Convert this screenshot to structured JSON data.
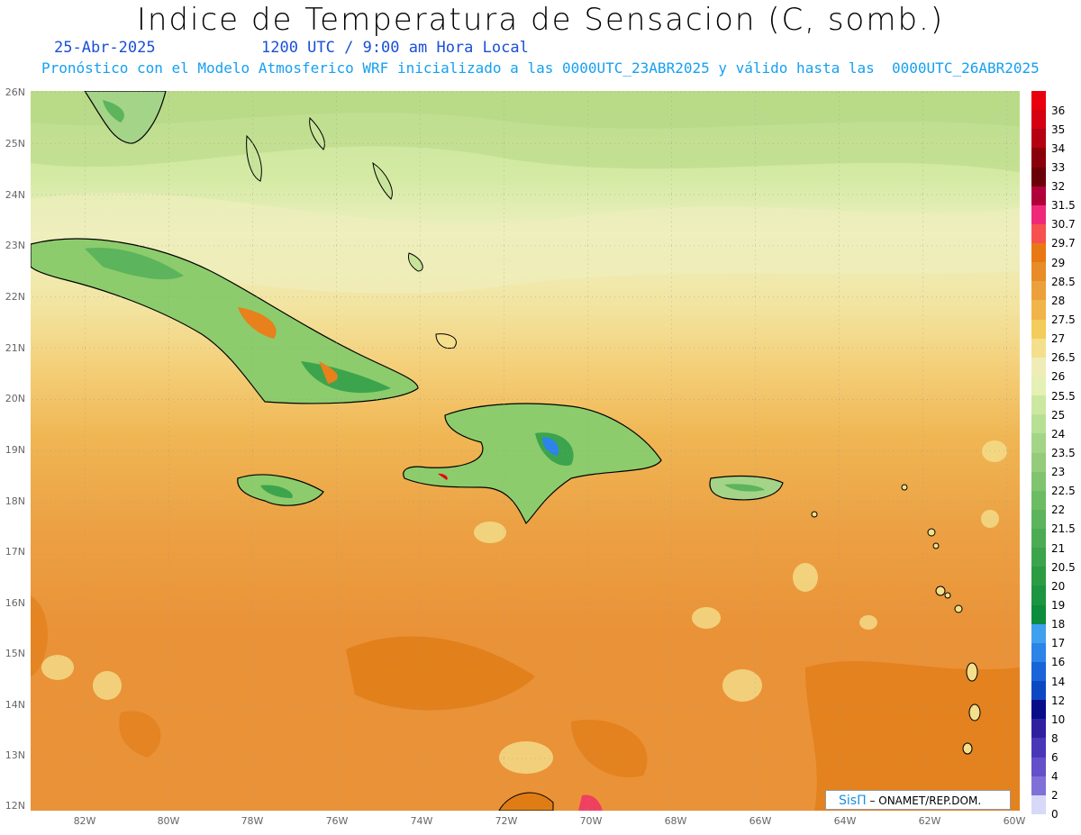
{
  "header": {
    "title": "Indice de Temperatura de Sensacion (C, somb.)",
    "date": "25-Abr-2025",
    "time": "1200 UTC / 9:00 am Hora Local",
    "forecast": "Pronóstico con el Modelo Atmosferico WRF inicializado a las 0000UTC_23ABR2025 y válido hasta las  0000UTC_26ABR2025"
  },
  "axes": {
    "lat_labels": [
      "26N",
      "25N",
      "24N",
      "23N",
      "22N",
      "21N",
      "20N",
      "19N",
      "18N",
      "17N",
      "16N",
      "15N",
      "14N",
      "13N",
      "12N"
    ],
    "lon_labels": [
      "82W",
      "80W",
      "78W",
      "76W",
      "74W",
      "72W",
      "70W",
      "68W",
      "66W",
      "64W",
      "62W",
      "60W"
    ]
  },
  "colorbar": {
    "labels": [
      "36",
      "35",
      "34",
      "33",
      "32",
      "31.5",
      "30.7",
      "29.7",
      "29",
      "28.5",
      "28",
      "27.5",
      "27",
      "26.5",
      "26",
      "25.5",
      "25",
      "24",
      "23.5",
      "23",
      "22.5",
      "22",
      "21.5",
      "21",
      "20.5",
      "20",
      "19",
      "18",
      "17",
      "16",
      "14",
      "12",
      "10",
      "8",
      "6",
      "4",
      "2",
      "0"
    ],
    "colors": [
      "#e8000e",
      "#d40012",
      "#b40010",
      "#8a000a",
      "#6a0008",
      "#b0003a",
      "#f0287a",
      "#f8504e",
      "#e87814",
      "#e88c28",
      "#eca03c",
      "#f0b448",
      "#f4cc5c",
      "#f4e08c",
      "#f0ecb8",
      "#e4f0b4",
      "#cce8a0",
      "#b8e094",
      "#a4d488",
      "#94cc7c",
      "#80c470",
      "#6cbc64",
      "#5cb45c",
      "#4cac54",
      "#3ca44c",
      "#2c9c44",
      "#1c9440",
      "#0c8c3c",
      "#40a0f0",
      "#2c84e8",
      "#1864d8",
      "#0c48c4",
      "#080c88",
      "#3020a0",
      "#4838b8",
      "#6450c8",
      "#8070d8",
      "#d8d8f8"
    ]
  },
  "credit": {
    "logo": "SisΠ",
    "text": "– ONAMET/REP.DOM."
  }
}
